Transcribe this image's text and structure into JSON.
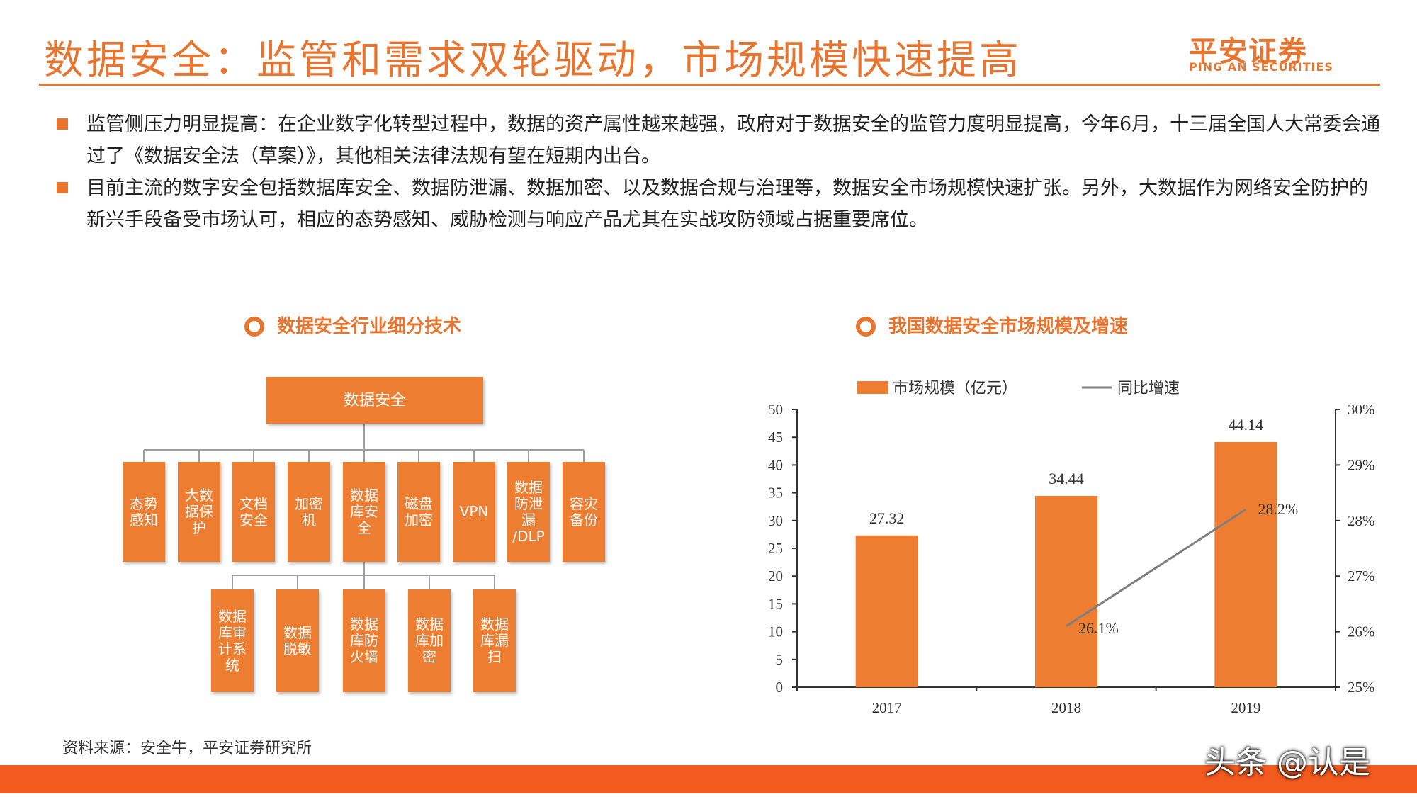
{
  "title": "数据安全：监管和需求双轮驱动，市场规模快速提高",
  "logo": {
    "cn": "平安证券",
    "en": "PING AN SECURITIES"
  },
  "bullets": [
    "监管侧压力明显提高：在企业数字化转型过程中，数据的资产属性越来越强，政府对于数据安全的监管力度明显提高，今年6月，十三届全国人大常委会通过了《数据安全法（草案）》，其他相关法律法规有望在短期内出台。",
    "目前主流的数字安全包括数据库安全、数据防泄漏、数据加密、以及数据合规与治理等，数据安全市场规模快速扩张。另外，大数据作为网络安全防护的新兴手段备受市场认可，相应的态势感知、威胁检测与响应产品尤其在实战攻防领域占据重要席位。"
  ],
  "diagram": {
    "title": "数据安全行业细分技术",
    "root": "数据安全",
    "level1": [
      "态势\n感知",
      "大数\n据保\n护",
      "文档\n安全",
      "加密\n机",
      "数据\n库安\n全",
      "磁盘\n加密",
      "VPN",
      "数据\n防泄\n漏\n/DLP",
      "容灾\n备份"
    ],
    "level2": [
      "数据\n库审\n计系\n统",
      "数据\n脱敏",
      "数据\n库防\n火墙",
      "数据\n库加\n密",
      "数据\n库漏\n扫"
    ]
  },
  "chart_title": "我国数据安全市场规模及增速",
  "chart_data": {
    "type": "bar",
    "categories": [
      "2017",
      "2018",
      "2019"
    ],
    "series": [
      {
        "name": "市场规模（亿元）",
        "type": "bar",
        "axis": "left",
        "values": [
          27.32,
          34.44,
          44.14
        ],
        "labels": [
          "27.32",
          "34.44",
          "44.14"
        ]
      },
      {
        "name": "同比增速",
        "type": "line",
        "axis": "right",
        "values": [
          null,
          26.1,
          28.2
        ],
        "labels": [
          "",
          "26.1%",
          "28.2%"
        ]
      }
    ],
    "y_left": {
      "min": 0,
      "max": 50,
      "ticks": [
        "0",
        "5",
        "10",
        "15",
        "20",
        "25",
        "30",
        "35",
        "40",
        "45",
        "50"
      ]
    },
    "y_right": {
      "min": 25,
      "max": 30,
      "ticks": [
        "25%",
        "26%",
        "27%",
        "28%",
        "29%",
        "30%"
      ]
    },
    "legend_position": "top",
    "grid": false,
    "colors": {
      "bar": "#ED7D31",
      "line": "#7F7F7F"
    }
  },
  "source": "资料来源：安全牛，平安证券研究所",
  "watermark": "头条 @认是",
  "colors": {
    "accent": "#E8742E",
    "footer": "#F25A1E"
  }
}
